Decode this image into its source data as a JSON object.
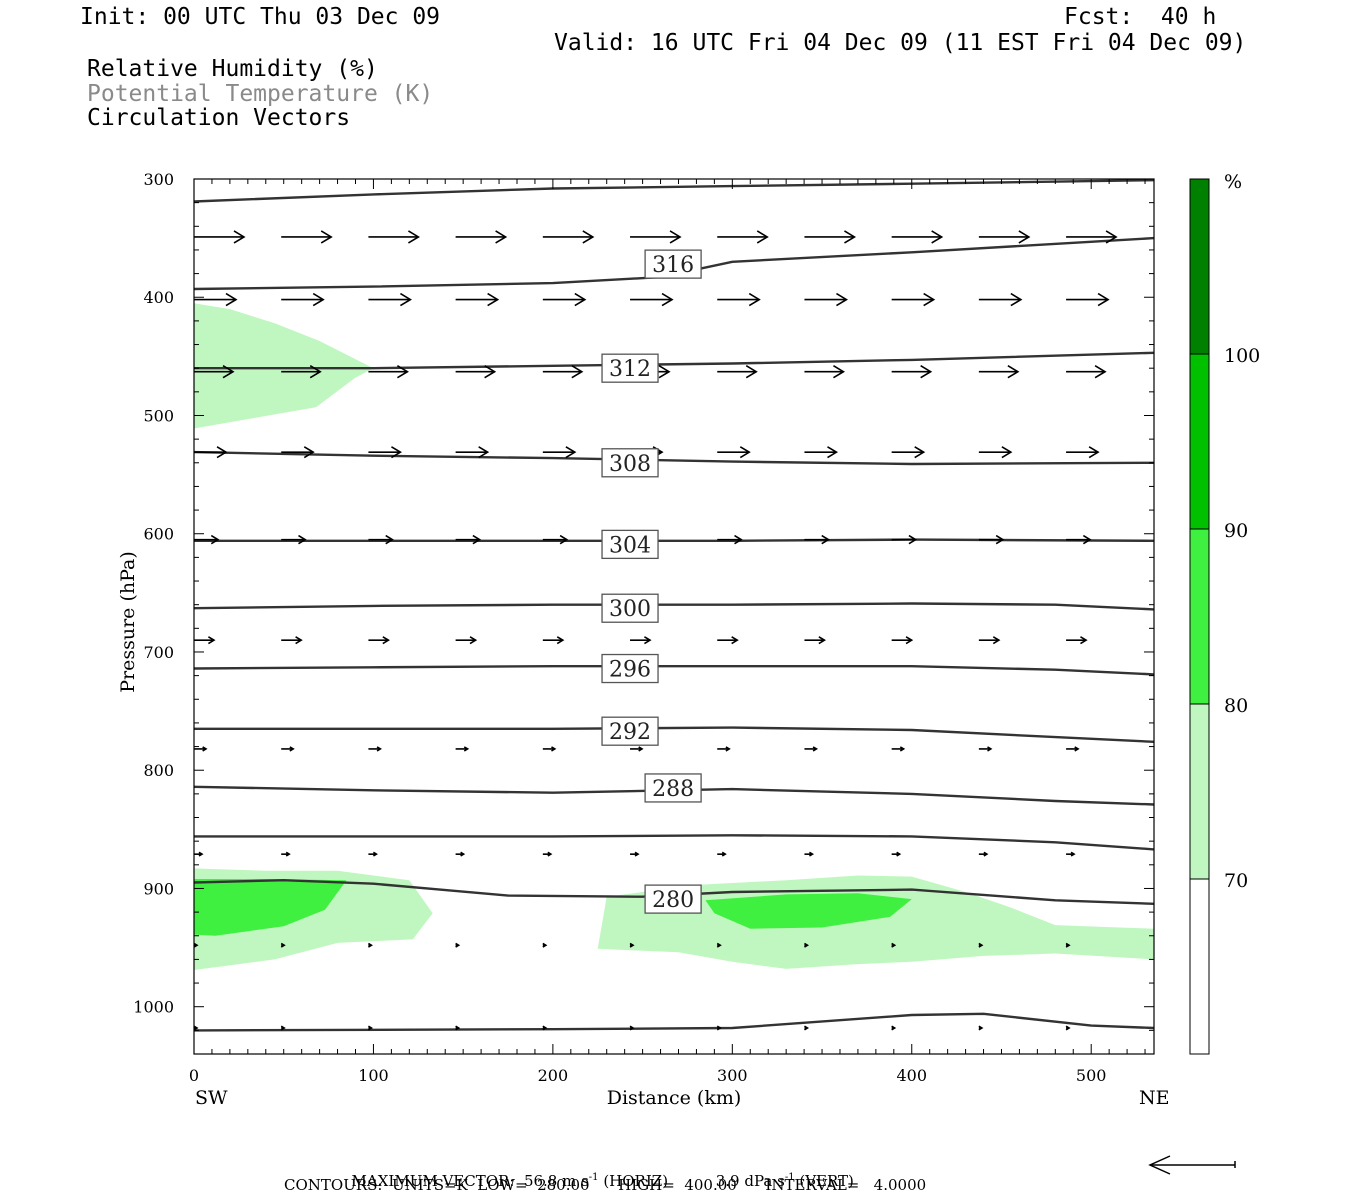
{
  "header": {
    "init": "Init: 00 UTC Thu 03 Dec 09",
    "fcst": "Fcst:  40 h",
    "valid": "Valid: 16 UTC Fri 04 Dec 09 (11 EST Fri 04 Dec 09)",
    "legend_rh": "Relative Humidity (%)",
    "legend_theta": "Potential Temperature (K)",
    "legend_vec": "Circulation Vectors"
  },
  "footer": {
    "max_vector_label": "MAXIMUM VECTOR:",
    "horiz_value": "56.8 m s",
    "horiz_unit": "(HORIZ)",
    "vert_value": "3.9 dPa s",
    "vert_unit": "(VERT)",
    "exp": "-1",
    "contours": "CONTOURS:  UNITS=K  LOW=  280.00      HIGH=  400.00      INTERVAL=   4.0000"
  },
  "colors": {
    "rh_70_80": "#c0f7c0",
    "rh_80_90": "#40f040",
    "rh_90_100": "#00c000",
    "rh_100_plus": "#008000",
    "theta_line": "#333333",
    "vector": "#000000"
  },
  "chart_data": {
    "type": "contour",
    "xlabel": "Distance (km)",
    "ylabel": "Pressure (hPa)",
    "xlim": [
      0,
      535
    ],
    "ylim": [
      1040,
      300
    ],
    "x_ticks": [
      0,
      100,
      200,
      300,
      400,
      500
    ],
    "y_ticks": [
      300,
      400,
      500,
      600,
      700,
      800,
      900,
      1000
    ],
    "x_end_labels": {
      "left": "SW",
      "right": "NE"
    },
    "colorbar": {
      "unit": "%",
      "levels": [
        70,
        80,
        90,
        100
      ],
      "colors": [
        "#ffffff",
        "#c0f7c0",
        "#40f040",
        "#00c000",
        "#008000"
      ]
    },
    "rh_fill": [
      {
        "level": "70-80",
        "color": "#c0f7c0",
        "points": [
          [
            0,
            405
          ],
          [
            20,
            410
          ],
          [
            45,
            422
          ],
          [
            70,
            437
          ],
          [
            100,
            460
          ],
          [
            90,
            468
          ],
          [
            68,
            493
          ],
          [
            0,
            511
          ]
        ]
      },
      {
        "level": "70-80",
        "color": "#c0f7c0",
        "points": [
          [
            0,
            883
          ],
          [
            40,
            885
          ],
          [
            80,
            885
          ],
          [
            120,
            893
          ],
          [
            133,
            921
          ],
          [
            122,
            943
          ],
          [
            80,
            946
          ],
          [
            45,
            960
          ],
          [
            0,
            969
          ]
        ]
      },
      {
        "level": "70-80",
        "color": "#c0f7c0",
        "points": [
          [
            230,
            907
          ],
          [
            280,
            897
          ],
          [
            330,
            893
          ],
          [
            370,
            889
          ],
          [
            400,
            890
          ],
          [
            430,
            903
          ],
          [
            455,
            916
          ],
          [
            480,
            931
          ],
          [
            535,
            934
          ],
          [
            535,
            960
          ],
          [
            480,
            955
          ],
          [
            440,
            957
          ],
          [
            400,
            962
          ],
          [
            370,
            964
          ],
          [
            330,
            968
          ],
          [
            300,
            962
          ],
          [
            270,
            954
          ],
          [
            225,
            951
          ]
        ]
      },
      {
        "level": "80-90",
        "color": "#40f040",
        "points": [
          [
            0,
            892
          ],
          [
            40,
            892
          ],
          [
            85,
            893
          ],
          [
            73,
            918
          ],
          [
            50,
            932
          ],
          [
            12,
            940
          ],
          [
            0,
            939
          ]
        ]
      },
      {
        "level": "80-90",
        "color": "#40f040",
        "points": [
          [
            285,
            910
          ],
          [
            330,
            905
          ],
          [
            370,
            904
          ],
          [
            400,
            909
          ],
          [
            388,
            924
          ],
          [
            350,
            933
          ],
          [
            310,
            934
          ],
          [
            290,
            921
          ]
        ]
      }
    ],
    "theta_contours": [
      {
        "label": "",
        "points": [
          [
            0,
            319
          ],
          [
            100,
            313
          ],
          [
            200,
            308
          ],
          [
            300,
            306
          ],
          [
            400,
            304
          ],
          [
            535,
            301
          ]
        ]
      },
      {
        "label": "316",
        "label_at": [
          267,
          372
        ],
        "points": [
          [
            0,
            393
          ],
          [
            100,
            391
          ],
          [
            200,
            388
          ],
          [
            260,
            383
          ],
          [
            300,
            370
          ],
          [
            400,
            362
          ],
          [
            535,
            350
          ]
        ]
      },
      {
        "label": "312",
        "label_at": [
          243,
          460
        ],
        "points": [
          [
            0,
            460
          ],
          [
            100,
            460
          ],
          [
            200,
            458
          ],
          [
            300,
            456
          ],
          [
            400,
            453
          ],
          [
            535,
            447
          ]
        ]
      },
      {
        "label": "308",
        "label_at": [
          243,
          540
        ],
        "points": [
          [
            0,
            531
          ],
          [
            100,
            534
          ],
          [
            200,
            536
          ],
          [
            300,
            539
          ],
          [
            400,
            541
          ],
          [
            535,
            540
          ]
        ]
      },
      {
        "label": "304",
        "label_at": [
          243,
          609
        ],
        "points": [
          [
            0,
            606
          ],
          [
            100,
            606
          ],
          [
            200,
            606
          ],
          [
            300,
            606
          ],
          [
            400,
            605
          ],
          [
            535,
            606
          ]
        ]
      },
      {
        "label": "300",
        "label_at": [
          243,
          663
        ],
        "points": [
          [
            0,
            663
          ],
          [
            100,
            661
          ],
          [
            200,
            660
          ],
          [
            300,
            660
          ],
          [
            400,
            659
          ],
          [
            480,
            660
          ],
          [
            535,
            664
          ]
        ]
      },
      {
        "label": "296",
        "label_at": [
          243,
          714
        ],
        "points": [
          [
            0,
            714
          ],
          [
            100,
            713
          ],
          [
            200,
            712
          ],
          [
            300,
            712
          ],
          [
            400,
            712
          ],
          [
            480,
            715
          ],
          [
            535,
            719
          ]
        ]
      },
      {
        "label": "292",
        "label_at": [
          243,
          767
        ],
        "points": [
          [
            0,
            765
          ],
          [
            100,
            765
          ],
          [
            200,
            765
          ],
          [
            300,
            764
          ],
          [
            400,
            766
          ],
          [
            480,
            772
          ],
          [
            535,
            776
          ]
        ]
      },
      {
        "label": "288",
        "label_at": [
          267,
          815
        ],
        "points": [
          [
            0,
            814
          ],
          [
            100,
            817
          ],
          [
            200,
            819
          ],
          [
            300,
            816
          ],
          [
            400,
            820
          ],
          [
            480,
            826
          ],
          [
            535,
            829
          ]
        ]
      },
      {
        "label": "",
        "points": [
          [
            0,
            856
          ],
          [
            100,
            856
          ],
          [
            200,
            856
          ],
          [
            300,
            855
          ],
          [
            400,
            856
          ],
          [
            480,
            861
          ],
          [
            535,
            867
          ]
        ]
      },
      {
        "label": "280",
        "label_at": [
          267,
          909
        ],
        "points": [
          [
            0,
            895
          ],
          [
            50,
            893
          ],
          [
            100,
            896
          ],
          [
            175,
            906
          ],
          [
            250,
            907
          ],
          [
            300,
            903
          ],
          [
            400,
            901
          ],
          [
            480,
            910
          ],
          [
            535,
            913
          ]
        ]
      },
      {
        "label": "",
        "points": [
          [
            0,
            1020
          ],
          [
            200,
            1019
          ],
          [
            300,
            1018
          ],
          [
            400,
            1007
          ],
          [
            440,
            1006
          ],
          [
            500,
            1016
          ],
          [
            535,
            1018
          ]
        ]
      }
    ],
    "vector_rows": [
      {
        "p": 349,
        "x0": 0,
        "x_end": 535,
        "dx": 48.6,
        "len": 50
      },
      {
        "p": 402,
        "x0": 0,
        "x_end": 535,
        "dx": 48.6,
        "len": 42
      },
      {
        "p": 463,
        "x0": 0,
        "x_end": 535,
        "dx": 48.6,
        "len": 39
      },
      {
        "p": 531,
        "x0": 0,
        "x_end": 535,
        "dx": 48.6,
        "len": 32
      },
      {
        "p": 605,
        "x0": 0,
        "x_end": 535,
        "dx": 48.6,
        "len": 24
      },
      {
        "p": 690,
        "x0": 0,
        "x_end": 535,
        "dx": 48.6,
        "len": 20
      },
      {
        "p": 782,
        "x0": 0,
        "x_end": 535,
        "dx": 48.6,
        "len": 12
      },
      {
        "p": 871,
        "x0": 0,
        "x_end": 535,
        "dx": 48.6,
        "len": 8
      },
      {
        "p": 948,
        "x0": 0,
        "x_end": 535,
        "dx": 48.6,
        "len": 3
      },
      {
        "p": 1018,
        "x0": 0,
        "x_end": 535,
        "dx": 48.6,
        "len": 3
      }
    ]
  }
}
